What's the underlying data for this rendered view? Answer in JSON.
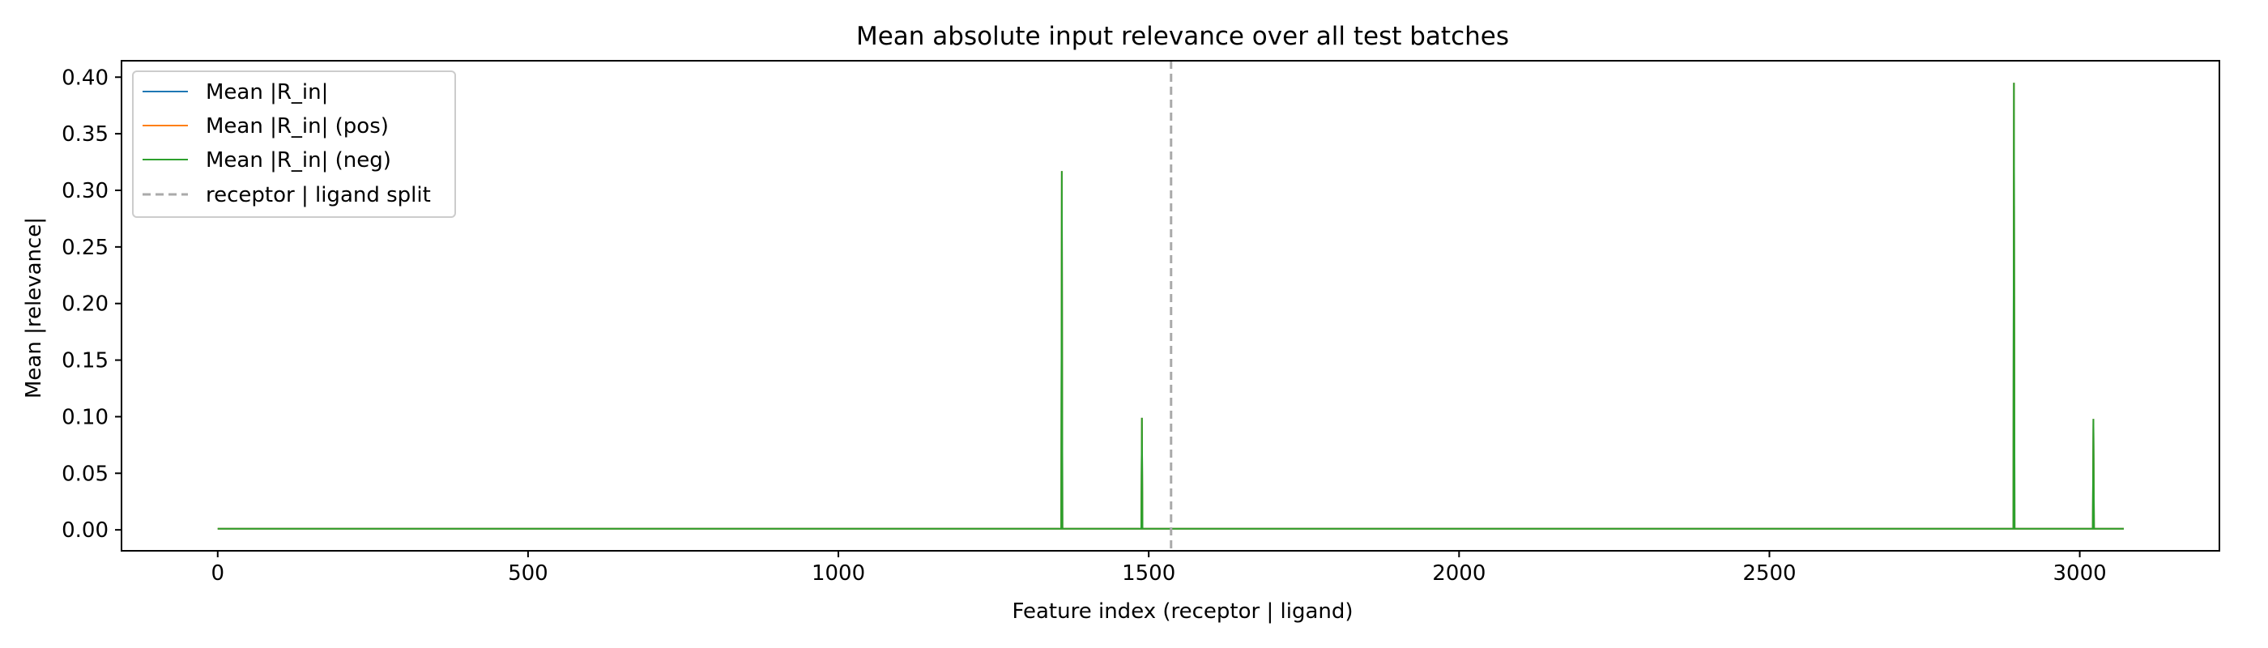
{
  "chart_data": {
    "type": "line",
    "title": "Mean absolute input relevance over all test batches",
    "xlabel": "Feature index (receptor | ligand)",
    "ylabel": "Mean |relevance|",
    "xlim": [
      -155,
      3225
    ],
    "ylim": [
      -0.0185,
      0.4145
    ],
    "xticks": [
      0,
      500,
      1000,
      1500,
      2000,
      2500,
      3000
    ],
    "xtick_labels": [
      "0",
      "500",
      "1000",
      "1500",
      "2000",
      "2500",
      "3000"
    ],
    "yticks": [
      0.0,
      0.05,
      0.1,
      0.15,
      0.2,
      0.25,
      0.3,
      0.35,
      0.4
    ],
    "ytick_labels": [
      "0.00",
      "0.05",
      "0.10",
      "0.15",
      "0.20",
      "0.25",
      "0.30",
      "0.35",
      "0.40"
    ],
    "grid": false,
    "legend_position": "top-left",
    "x_max_index": 3071,
    "baseline_value": 0.001,
    "series": [
      {
        "name": "Mean |R_in|",
        "color": "#1f77b4",
        "points": [
          [
            0,
            0.001
          ],
          [
            1359,
            0.001
          ],
          [
            1360,
            0.317
          ],
          [
            1361,
            0.001
          ],
          [
            1488,
            0.001
          ],
          [
            1489,
            0.099
          ],
          [
            1490,
            0.001
          ],
          [
            2893,
            0.001
          ],
          [
            2894,
            0.395
          ],
          [
            2895,
            0.001
          ],
          [
            3021,
            0.001
          ],
          [
            3022,
            0.098
          ],
          [
            3023,
            0.001
          ],
          [
            3071,
            0.001
          ]
        ]
      },
      {
        "name": "Mean |R_in| (pos)",
        "color": "#ff7f0e",
        "points": [
          [
            0,
            0.001
          ],
          [
            1359,
            0.001
          ],
          [
            1360,
            0.317
          ],
          [
            1361,
            0.001
          ],
          [
            1488,
            0.001
          ],
          [
            1489,
            0.099
          ],
          [
            1490,
            0.001
          ],
          [
            2893,
            0.001
          ],
          [
            2894,
            0.395
          ],
          [
            2895,
            0.001
          ],
          [
            3021,
            0.001
          ],
          [
            3022,
            0.098
          ],
          [
            3023,
            0.001
          ],
          [
            3071,
            0.001
          ]
        ]
      },
      {
        "name": "Mean |R_in| (neg)",
        "color": "#2ca02c",
        "points": [
          [
            0,
            0.001
          ],
          [
            1359,
            0.001
          ],
          [
            1360,
            0.317
          ],
          [
            1361,
            0.001
          ],
          [
            1488,
            0.001
          ],
          [
            1489,
            0.099
          ],
          [
            1490,
            0.001
          ],
          [
            2893,
            0.001
          ],
          [
            2894,
            0.395
          ],
          [
            2895,
            0.001
          ],
          [
            3021,
            0.001
          ],
          [
            3022,
            0.098
          ],
          [
            3023,
            0.001
          ],
          [
            3071,
            0.001
          ]
        ]
      }
    ],
    "vline": {
      "x": 1536,
      "name": "receptor | ligand split",
      "color": "#aaaaaa",
      "style": "dashed"
    }
  }
}
